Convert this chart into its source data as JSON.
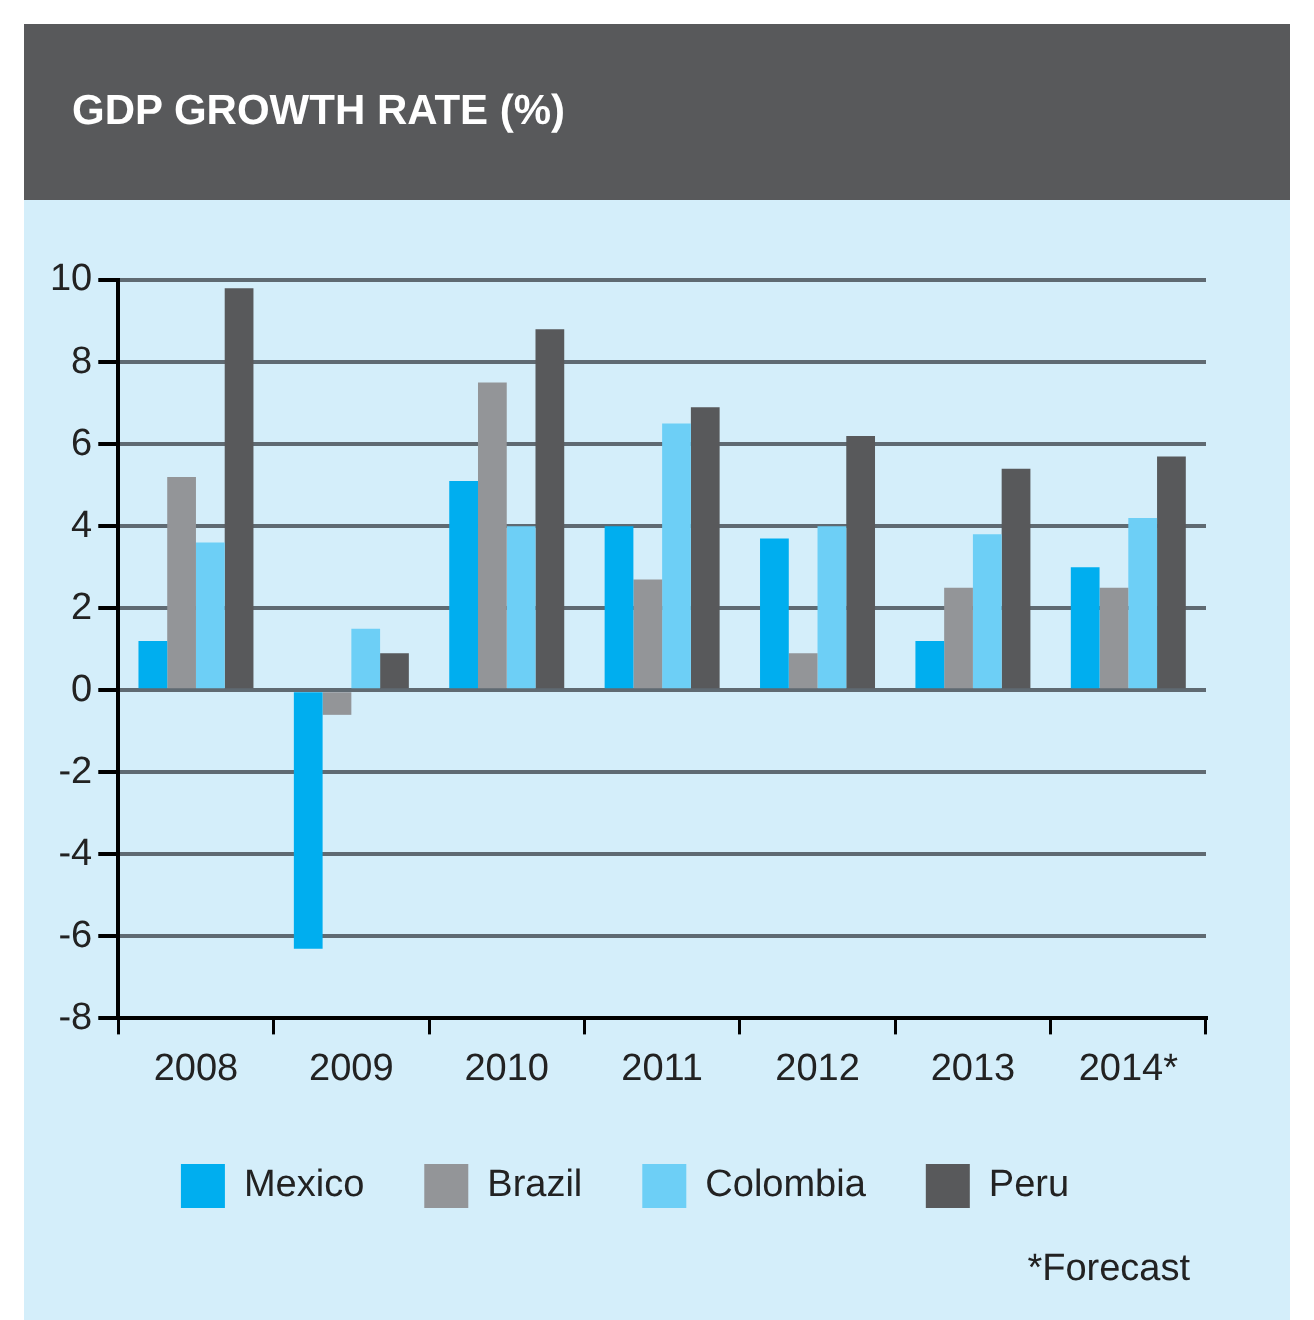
{
  "chart_data": {
    "type": "bar",
    "title": "GDP GROWTH RATE (%)",
    "categories": [
      "2008",
      "2009",
      "2010",
      "2011",
      "2012",
      "2013",
      "2014*"
    ],
    "series": [
      {
        "name": "Mexico",
        "color": "#00aeef",
        "values": [
          1.2,
          -6.3,
          5.1,
          4.0,
          3.7,
          1.2,
          3.0
        ]
      },
      {
        "name": "Brazil",
        "color": "#939598",
        "values": [
          5.2,
          -0.6,
          7.5,
          2.7,
          0.9,
          2.5,
          2.5
        ]
      },
      {
        "name": "Colombia",
        "color": "#6dcff6",
        "values": [
          3.6,
          1.5,
          4.0,
          6.5,
          4.0,
          3.8,
          4.2
        ]
      },
      {
        "name": "Peru",
        "color": "#58595b",
        "values": [
          9.8,
          0.9,
          8.8,
          6.9,
          6.2,
          5.4,
          5.7
        ]
      }
    ],
    "ylim": [
      -8,
      10
    ],
    "yticks": [
      -8,
      -6,
      -4,
      -2,
      0,
      2,
      4,
      6,
      8,
      10
    ],
    "grid": "y",
    "legend": "bottom",
    "annotations": [
      "*Forecast"
    ]
  }
}
